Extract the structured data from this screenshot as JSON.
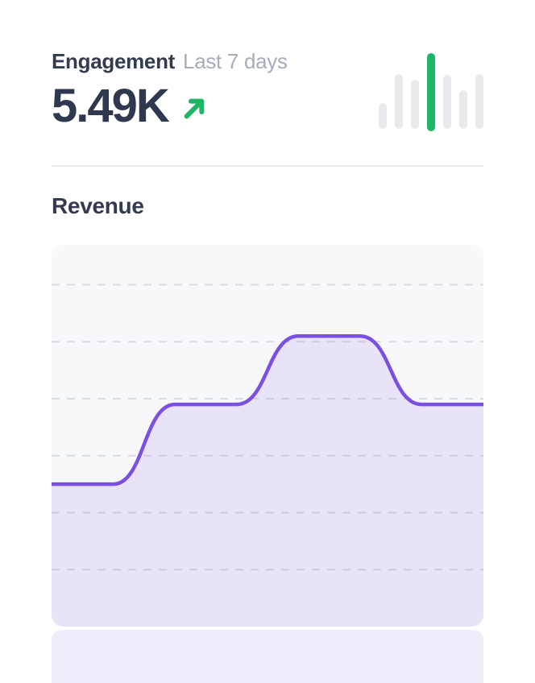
{
  "engagement": {
    "title": "Engagement",
    "period": "Last 7 days",
    "value": "5.49K",
    "trend": "up",
    "trend_icon": "arrow-up-right-icon",
    "accent_color": "#1eb567",
    "sparkline": {
      "type": "bar",
      "values": [
        32,
        68,
        61,
        97,
        67,
        48,
        68
      ],
      "highlight_index": 3,
      "bar_color": "#e9eaee",
      "highlight_color": "#1eb567"
    }
  },
  "revenue": {
    "title": "Revenue"
  },
  "chart_data": {
    "type": "area",
    "title": "Revenue",
    "x": [
      1,
      2,
      3,
      4,
      5,
      6,
      7,
      8
    ],
    "values": [
      25,
      25,
      39,
      39,
      51,
      51,
      39,
      39
    ],
    "ylim": [
      0,
      67
    ],
    "gridlines": [
      10,
      20,
      30,
      40,
      50,
      60
    ],
    "grid_style": "dashed-horizontal",
    "xlabel": "",
    "ylabel": "",
    "tick_labels": "none",
    "legend_position": "none",
    "line_color": "#7c4fe3",
    "fill_color": "rgba(124,79,227,0.12)"
  }
}
